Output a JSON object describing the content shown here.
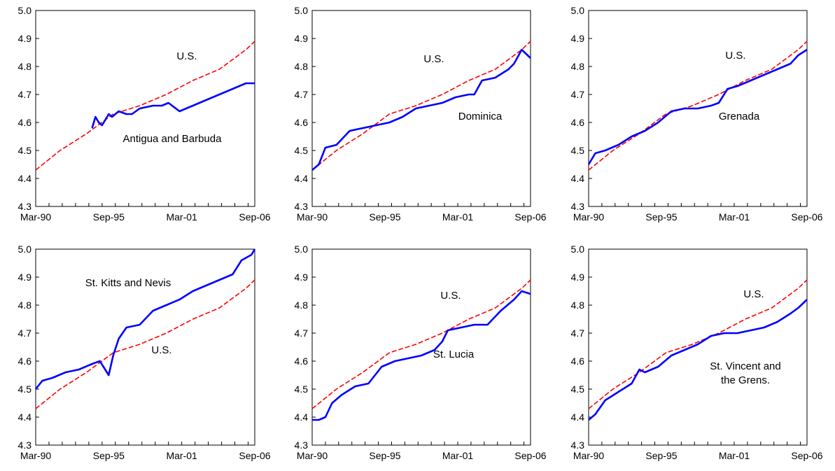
{
  "colors": {
    "country": "#0000ff",
    "us": "#ff0000",
    "axis": "#000000"
  },
  "chart_data": [
    {
      "type": "line",
      "title": "",
      "x_tick_labels": [
        "Mar-90",
        "Sep-95",
        "Mar-01",
        "Sep-06"
      ],
      "x_range": [
        "Mar-90",
        "Sep-06"
      ],
      "ylim": [
        4.3,
        5.0
      ],
      "y_ticks": [
        "4.3",
        "4.4",
        "4.5",
        "4.6",
        "4.7",
        "4.8",
        "4.9",
        "5.0"
      ],
      "grid": false,
      "series": [
        {
          "name": "U.S.",
          "style": "dashed",
          "x": [
            "1990-03",
            "1992-01",
            "1994-01",
            "1996-01",
            "1998-01",
            "2000-01",
            "2002-01",
            "2004-01",
            "2006-01",
            "2006-09"
          ],
          "y": [
            4.43,
            4.5,
            4.56,
            4.63,
            4.66,
            4.7,
            4.75,
            4.79,
            4.86,
            4.89
          ]
        },
        {
          "name": "Antigua and Barbuda",
          "style": "solid",
          "x": [
            "1994-06",
            "1994-09",
            "1994-12",
            "1995-03",
            "1995-06",
            "1995-09",
            "1995-12",
            "1996-06",
            "1997-01",
            "1997-06",
            "1998-01",
            "1999-01",
            "1999-09",
            "2000-03",
            "2001-01",
            "2002-01",
            "2003-01",
            "2004-01",
            "2005-01",
            "2006-01",
            "2006-09"
          ],
          "y": [
            4.58,
            4.62,
            4.6,
            4.59,
            4.61,
            4.63,
            4.62,
            4.64,
            4.63,
            4.63,
            4.65,
            4.66,
            4.66,
            4.67,
            4.64,
            4.66,
            4.68,
            4.7,
            4.72,
            4.74,
            4.74
          ]
        }
      ],
      "annotations": [
        "U.S.",
        "Antigua and Barbuda"
      ]
    },
    {
      "type": "line",
      "title": "",
      "x_tick_labels": [
        "Mar-90",
        "Sep-95",
        "Mar-01",
        "Sep-06"
      ],
      "x_range": [
        "Mar-90",
        "Sep-06"
      ],
      "ylim": [
        4.3,
        5.0
      ],
      "y_ticks": [
        "4.3",
        "4.4",
        "4.5",
        "4.6",
        "4.7",
        "4.8",
        "4.9",
        "5.0"
      ],
      "grid": false,
      "series": [
        {
          "name": "U.S.",
          "style": "dashed",
          "x": [
            "1990-03",
            "1992-01",
            "1994-01",
            "1996-01",
            "1998-01",
            "2000-01",
            "2002-01",
            "2004-01",
            "2006-01",
            "2006-09"
          ],
          "y": [
            4.43,
            4.5,
            4.56,
            4.63,
            4.66,
            4.7,
            4.75,
            4.79,
            4.86,
            4.89
          ]
        },
        {
          "name": "Dominica",
          "style": "solid",
          "x": [
            "1990-03",
            "1990-09",
            "1991-03",
            "1992-01",
            "1993-01",
            "1994-01",
            "1995-01",
            "1996-01",
            "1997-01",
            "1998-01",
            "1999-01",
            "2000-01",
            "2001-01",
            "2002-01",
            "2002-06",
            "2003-01",
            "2004-01",
            "2005-01",
            "2005-06",
            "2006-01",
            "2006-09"
          ],
          "y": [
            4.43,
            4.45,
            4.51,
            4.52,
            4.57,
            4.58,
            4.59,
            4.6,
            4.62,
            4.65,
            4.66,
            4.67,
            4.69,
            4.7,
            4.7,
            4.75,
            4.76,
            4.79,
            4.81,
            4.86,
            4.83
          ]
        }
      ],
      "annotations": [
        "U.S.",
        "Dominica"
      ]
    },
    {
      "type": "line",
      "title": "",
      "x_tick_labels": [
        "Mar-90",
        "Sep-95",
        "Mar-01",
        "Sep-06"
      ],
      "x_range": [
        "Mar-90",
        "Sep-06"
      ],
      "ylim": [
        4.3,
        5.0
      ],
      "y_ticks": [
        "4.3",
        "4.4",
        "4.5",
        "4.6",
        "4.7",
        "4.8",
        "4.9",
        "5.0"
      ],
      "grid": false,
      "series": [
        {
          "name": "U.S.",
          "style": "dashed",
          "x": [
            "1990-03",
            "1992-01",
            "1994-01",
            "1996-01",
            "1998-01",
            "2000-01",
            "2002-01",
            "2004-01",
            "2006-01",
            "2006-09"
          ],
          "y": [
            4.43,
            4.5,
            4.56,
            4.63,
            4.66,
            4.7,
            4.75,
            4.79,
            4.86,
            4.89
          ]
        },
        {
          "name": "Grenada",
          "style": "solid",
          "x": [
            "1990-03",
            "1990-09",
            "1991-06",
            "1992-06",
            "1993-06",
            "1994-06",
            "1995-06",
            "1996-06",
            "1997-06",
            "1998-06",
            "1999-06",
            "2000-01",
            "2000-09",
            "2001-06",
            "2002-06",
            "2003-06",
            "2004-06",
            "2005-06",
            "2006-01",
            "2006-09"
          ],
          "y": [
            4.45,
            4.49,
            4.5,
            4.52,
            4.55,
            4.57,
            4.6,
            4.64,
            4.65,
            4.65,
            4.66,
            4.67,
            4.72,
            4.73,
            4.75,
            4.77,
            4.79,
            4.81,
            4.84,
            4.86
          ]
        }
      ],
      "annotations": [
        "U.S.",
        "Grenada"
      ]
    },
    {
      "type": "line",
      "title": "",
      "x_tick_labels": [
        "Mar-90",
        "Sep-95",
        "Mar-01",
        "Sep-06"
      ],
      "x_range": [
        "Mar-90",
        "Sep-06"
      ],
      "ylim": [
        4.3,
        5.0
      ],
      "y_ticks": [
        "4.3",
        "4.4",
        "4.5",
        "4.6",
        "4.7",
        "4.8",
        "4.9",
        "5.0"
      ],
      "grid": false,
      "series": [
        {
          "name": "U.S.",
          "style": "dashed",
          "x": [
            "1990-03",
            "1992-01",
            "1994-01",
            "1996-01",
            "1998-01",
            "2000-01",
            "2002-01",
            "2004-01",
            "2006-01",
            "2006-09"
          ],
          "y": [
            4.43,
            4.5,
            4.56,
            4.63,
            4.66,
            4.7,
            4.75,
            4.79,
            4.86,
            4.89
          ]
        },
        {
          "name": "St. Kitts and Nevis",
          "style": "solid",
          "x": [
            "1990-03",
            "1990-09",
            "1991-06",
            "1992-06",
            "1993-06",
            "1994-06",
            "1995-01",
            "1995-09",
            "1996-01",
            "1996-06",
            "1997-01",
            "1998-01",
            "1999-01",
            "2000-01",
            "2001-01",
            "2002-01",
            "2003-01",
            "2004-01",
            "2005-01",
            "2005-09",
            "2006-06",
            "2006-09"
          ],
          "y": [
            4.5,
            4.53,
            4.54,
            4.56,
            4.57,
            4.59,
            4.6,
            4.55,
            4.62,
            4.68,
            4.72,
            4.73,
            4.78,
            4.8,
            4.82,
            4.85,
            4.87,
            4.89,
            4.91,
            4.96,
            4.98,
            5.0
          ]
        }
      ],
      "annotations": [
        "St. Kitts and Nevis",
        "U.S."
      ]
    },
    {
      "type": "line",
      "title": "",
      "x_tick_labels": [
        "Mar-90",
        "Sep-95",
        "Mar-01",
        "Sep-06"
      ],
      "x_range": [
        "Mar-90",
        "Sep-06"
      ],
      "ylim": [
        4.3,
        5.0
      ],
      "y_ticks": [
        "4.3",
        "4.4",
        "4.5",
        "4.6",
        "4.7",
        "4.8",
        "4.9",
        "5.0"
      ],
      "grid": false,
      "series": [
        {
          "name": "U.S.",
          "style": "dashed",
          "x": [
            "1990-03",
            "1992-01",
            "1994-01",
            "1996-01",
            "1998-01",
            "2000-01",
            "2002-01",
            "2004-01",
            "2006-01",
            "2006-09"
          ],
          "y": [
            4.43,
            4.5,
            4.56,
            4.63,
            4.66,
            4.7,
            4.75,
            4.79,
            4.86,
            4.89
          ]
        },
        {
          "name": "St. Lucia",
          "style": "solid",
          "x": [
            "1990-03",
            "1990-09",
            "1991-03",
            "1991-09",
            "1992-06",
            "1993-06",
            "1994-06",
            "1995-06",
            "1996-06",
            "1997-06",
            "1998-06",
            "1999-06",
            "2000-01",
            "2000-06",
            "2001-06",
            "2002-06",
            "2003-06",
            "2004-06",
            "2005-06",
            "2006-01",
            "2006-09"
          ],
          "y": [
            4.39,
            4.39,
            4.4,
            4.45,
            4.48,
            4.51,
            4.52,
            4.58,
            4.6,
            4.61,
            4.62,
            4.64,
            4.67,
            4.71,
            4.72,
            4.73,
            4.73,
            4.78,
            4.82,
            4.85,
            4.84
          ]
        }
      ],
      "annotations": [
        "U.S.",
        "St. Lucia"
      ]
    },
    {
      "type": "line",
      "title": "",
      "x_tick_labels": [
        "Mar-90",
        "Sep-95",
        "Mar-01",
        "Sep-06"
      ],
      "x_range": [
        "Mar-90",
        "Sep-06"
      ],
      "ylim": [
        4.3,
        5.0
      ],
      "y_ticks": [
        "4.3",
        "4.4",
        "4.5",
        "4.6",
        "4.7",
        "4.8",
        "4.9",
        "5.0"
      ],
      "grid": false,
      "series": [
        {
          "name": "U.S.",
          "style": "dashed",
          "x": [
            "1990-03",
            "1992-01",
            "1994-01",
            "1996-01",
            "1998-01",
            "2000-01",
            "2002-01",
            "2004-01",
            "2006-01",
            "2006-09"
          ],
          "y": [
            4.43,
            4.5,
            4.56,
            4.63,
            4.66,
            4.7,
            4.75,
            4.79,
            4.86,
            4.89
          ]
        },
        {
          "name": "St. Vincent and the Grens.",
          "style": "solid",
          "x": [
            "1990-03",
            "1990-09",
            "1991-06",
            "1992-06",
            "1993-06",
            "1994-01",
            "1994-06",
            "1995-06",
            "1996-06",
            "1997-06",
            "1998-06",
            "1999-06",
            "2000-06",
            "2001-06",
            "2002-06",
            "2003-06",
            "2004-06",
            "2005-06",
            "2006-01",
            "2006-09"
          ],
          "y": [
            4.39,
            4.41,
            4.46,
            4.49,
            4.52,
            4.57,
            4.56,
            4.58,
            4.62,
            4.64,
            4.66,
            4.69,
            4.7,
            4.7,
            4.71,
            4.72,
            4.74,
            4.77,
            4.79,
            4.82
          ]
        }
      ],
      "annotations": [
        "U.S.",
        "St. Vincent and",
        "the Grens."
      ]
    }
  ]
}
